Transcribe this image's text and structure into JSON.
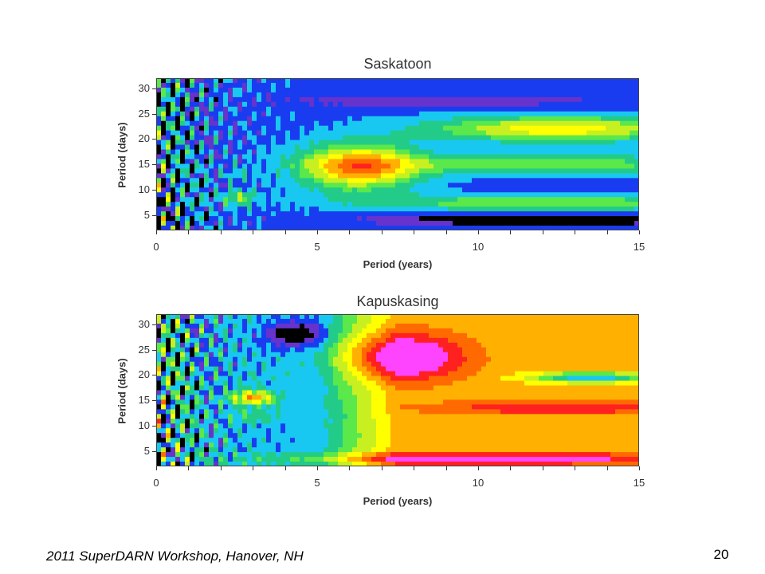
{
  "chart_data": [
    {
      "type": "heatmap",
      "title": "Saskatoon",
      "xlabel": "Period (years)",
      "ylabel": "Period (days)",
      "xlim": [
        0,
        15
      ],
      "ylim": [
        2,
        32
      ],
      "x_ticks": [
        "0",
        "5",
        "10",
        "15"
      ],
      "y_ticks": [
        "5",
        "10",
        "15",
        "20",
        "25",
        "30"
      ],
      "colormap": [
        "#000000",
        "#6633cc",
        "#1a3cf0",
        "#19c8f0",
        "#22cc88",
        "#5ae84a",
        "#c8f020",
        "#ffff00",
        "#ffb000",
        "#ff6a00",
        "#ff2020",
        "#ff44ff"
      ],
      "features": [
        {
          "x": 6.3,
          "y": 14.5,
          "level": 9,
          "desc": "peak"
        },
        {
          "x": 12.5,
          "y": 22,
          "level": 7
        },
        {
          "x": 12.5,
          "y": 15,
          "level": 5
        },
        {
          "x": 12.5,
          "y": 7,
          "level": 5
        },
        {
          "x": 12,
          "y": 4,
          "level": 0
        }
      ]
    },
    {
      "type": "heatmap",
      "title": "Kapuskasing",
      "xlabel": "Period (years)",
      "ylabel": "Period (days)",
      "xlim": [
        0,
        15
      ],
      "ylim": [
        2,
        32
      ],
      "x_ticks": [
        "0",
        "5",
        "10",
        "15"
      ],
      "y_ticks": [
        "5",
        "10",
        "15",
        "20",
        "25",
        "30"
      ],
      "colormap": [
        "#000000",
        "#6633cc",
        "#1a3cf0",
        "#19c8f0",
        "#22cc88",
        "#5ae84a",
        "#c8f020",
        "#ffff00",
        "#ffb000",
        "#ff6a00",
        "#ff2020",
        "#ff44ff"
      ],
      "features": [
        {
          "x": 7.6,
          "y": 23.5,
          "level": 11,
          "desc": "peak"
        },
        {
          "x": 10,
          "y": 3.5,
          "level": 11
        },
        {
          "x": 12,
          "y": 13.5,
          "level": 10
        },
        {
          "x": 13.5,
          "y": 19.5,
          "level": 2
        }
      ]
    }
  ],
  "footer": {
    "text": "2011 SuperDARN Workshop, Hanover, NH",
    "page_number": "20"
  }
}
